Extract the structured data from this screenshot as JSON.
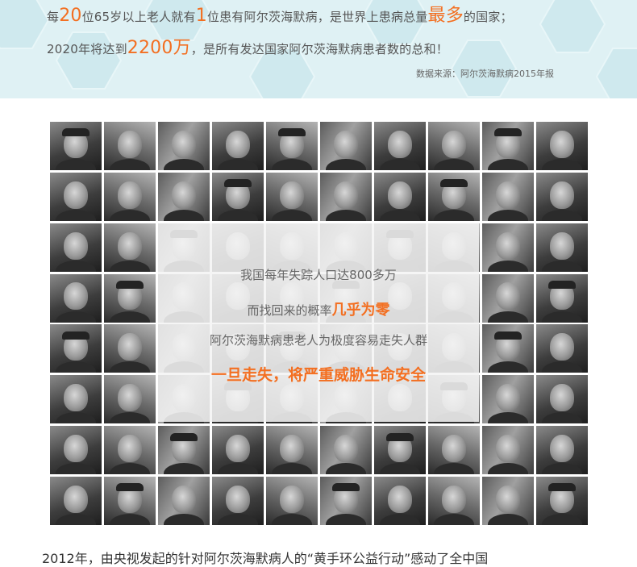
{
  "banner": {
    "line1": {
      "p1": "每",
      "n1": "20",
      "p2": "位65岁以上老人就有",
      "n2": "1",
      "p3": "位患有阿尔茨海默病，是世界上患病总量",
      "n3": "最多",
      "p4": "的国家；"
    },
    "line2": {
      "p1": "2020年将达到",
      "n1": "2200万",
      "p2": "，是所有发达国家阿尔茨海默病患者数的总和！"
    },
    "source": "数据来源：阿尔茨海默病2015年报"
  },
  "overlay": {
    "line1": "我国每年失踪人口达800多万",
    "line2_prefix": "而找回来的概率",
    "line2_highlight": "几乎为零",
    "line3": "阿尔茨海默病患老人为极度容易走失人群",
    "line4": "一旦走失，将严重威胁生命安全"
  },
  "bottom": {
    "text": "2012年，由央视发起的针对阿尔茨海默病人的“黄手环公益行动”感动了全中国"
  },
  "colors": {
    "accent": "#f36f21",
    "banner_bg": "#dff1f4",
    "text": "#555555"
  }
}
